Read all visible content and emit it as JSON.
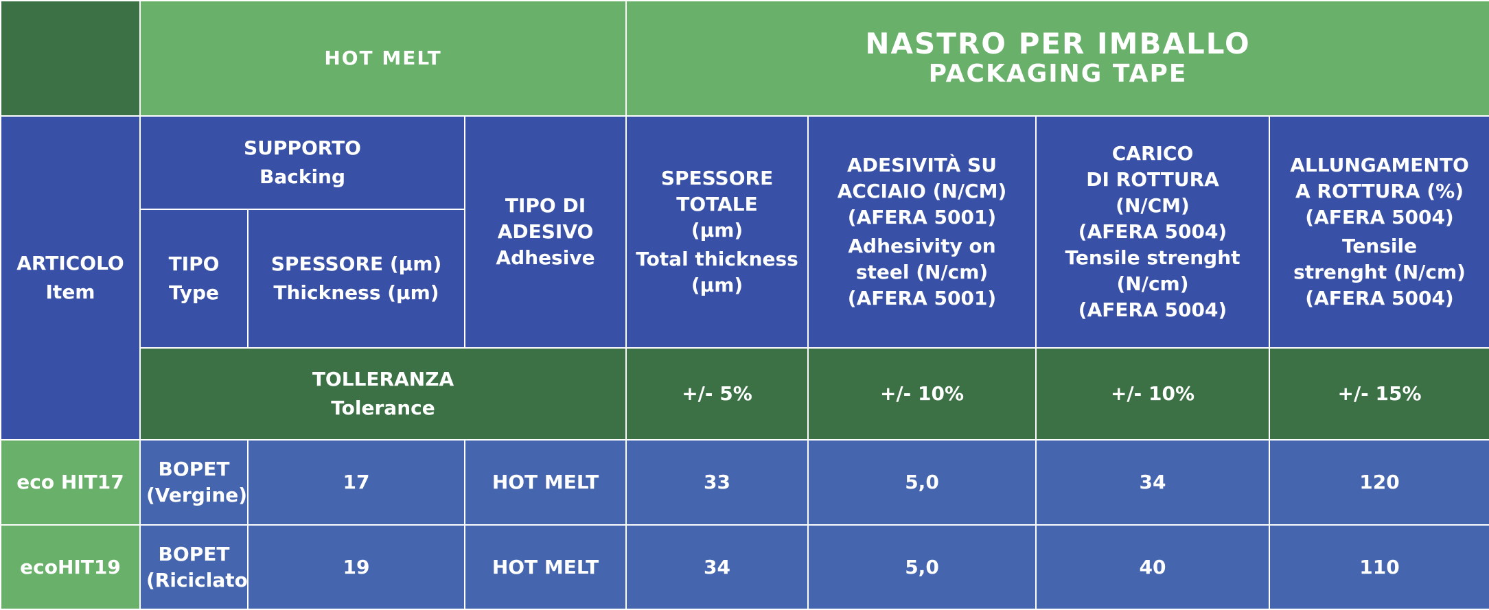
{
  "header": {
    "hot_melt": "HOT MELT",
    "packaging_it": "NASTRO PER IMBALLO",
    "packaging_en": "PACKAGING TAPE"
  },
  "columns": {
    "articolo": [
      "ARTICOLO",
      "Item"
    ],
    "supporto": [
      "SUPPORTO",
      "Backing"
    ],
    "tipo": [
      "TIPO",
      "Type"
    ],
    "spessore": [
      "SPESSORE (µm)",
      "Thickness (µm)"
    ],
    "adesivo": [
      "TIPO DI",
      "ADESIVO",
      "Adhesive"
    ],
    "spessore_totale": [
      "SPESSORE",
      "TOTALE",
      "(µm)",
      "Total thickness",
      "(µm)"
    ],
    "adesivita": [
      "ADESIVITÀ SU",
      "ACCIAIO (N/CM)",
      "(AFERA 5001)",
      "Adhesivity on",
      "steel (N/cm)",
      "(AFERA 5001)"
    ],
    "carico": [
      "CARICO",
      "DI ROTTURA",
      "(N/CM)",
      "(AFERA 5004)",
      "Tensile strenght",
      "(N/cm)",
      "(AFERA 5004)"
    ],
    "allungamento": [
      "ALLUNGAMENTO",
      "A ROTTURA (%)",
      "(AFERA 5004)",
      "Tensile",
      "strenght (N/cm)",
      "(AFERA 5004)"
    ]
  },
  "tolerance": {
    "label": [
      "TOLLERANZA",
      "Tolerance"
    ],
    "spessore_totale": "+/- 5%",
    "adesivita": "+/- 10%",
    "carico": "+/- 10%",
    "allungamento": "+/- 15%"
  },
  "rows": [
    {
      "item": "eco HIT17",
      "tipo": [
        "BOPET",
        "(Vergine)"
      ],
      "spessore": "17",
      "adesivo": "HOT MELT",
      "spessore_totale": "33",
      "adesivita": "5,0",
      "carico": "34",
      "allungamento": "120"
    },
    {
      "item": "ecoHIT19",
      "tipo": [
        "BOPET",
        "(Riciclato)"
      ],
      "spessore": "19",
      "adesivo": "HOT MELT",
      "spessore_totale": "34",
      "adesivita": "5,0",
      "carico": "40",
      "allungamento": "110"
    }
  ],
  "colors": {
    "light_green": "#69b06a",
    "dark_green": "#3b7145",
    "header_blue": "#3850a5",
    "data_blue": "#4565ae"
  }
}
